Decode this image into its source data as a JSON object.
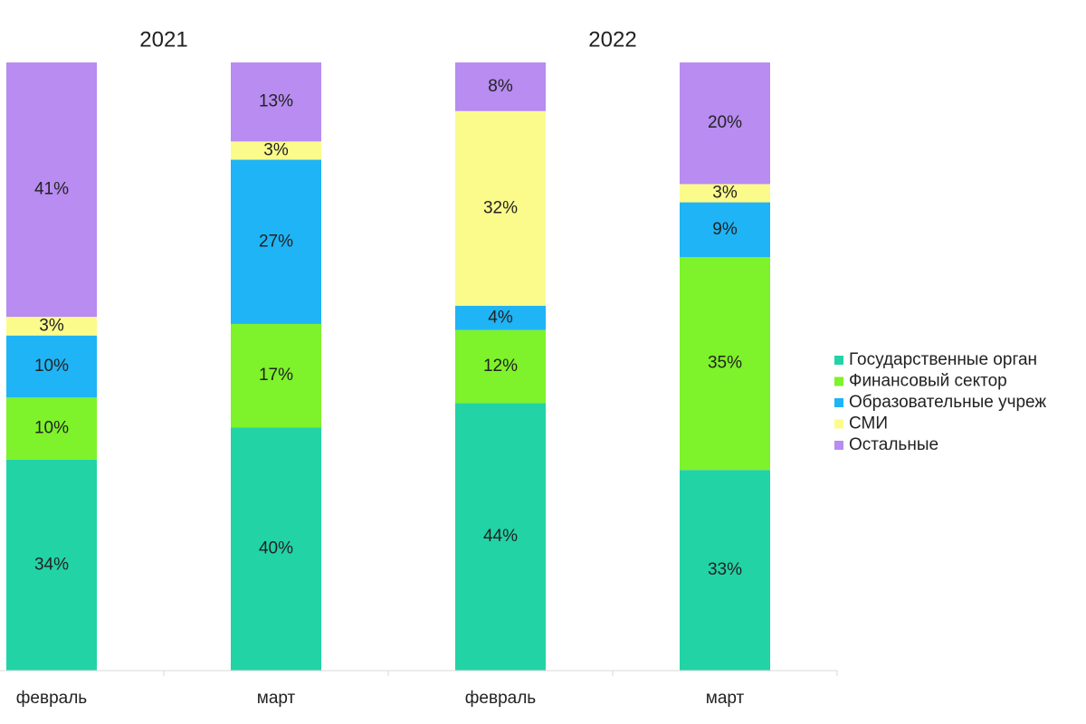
{
  "chart_data": {
    "type": "stacked_bar_100",
    "group_labels": [
      "2021",
      "2022"
    ],
    "categories": [
      "февраль",
      "март",
      "февраль",
      "март"
    ],
    "series": [
      {
        "name": "Государственные орган",
        "color": "#22d3a6",
        "values": [
          34,
          40,
          44,
          33
        ],
        "value_labels": [
          "34%",
          "40%",
          "44%",
          "33%"
        ]
      },
      {
        "name": "Финансовый сектор",
        "color": "#7ef22a",
        "values": [
          10,
          17,
          12,
          35
        ],
        "value_labels": [
          "10%",
          "17%",
          "12%",
          "35%"
        ]
      },
      {
        "name": "Образовательные учреж",
        "color": "#1fb4f5",
        "values": [
          10,
          27,
          4,
          9
        ],
        "value_labels": [
          "10%",
          "27%",
          "4%",
          "9%"
        ]
      },
      {
        "name": "СМИ",
        "color": "#fbfb8c",
        "values": [
          3,
          3,
          32,
          3
        ],
        "value_labels": [
          "3%",
          "3%",
          "32%",
          "3%"
        ]
      },
      {
        "name": "Остальные",
        "color": "#b88cf0",
        "values": [
          41,
          13,
          8,
          20
        ],
        "value_labels": [
          "41%",
          "13%",
          "8%",
          "20%"
        ]
      }
    ],
    "legend": "right"
  }
}
